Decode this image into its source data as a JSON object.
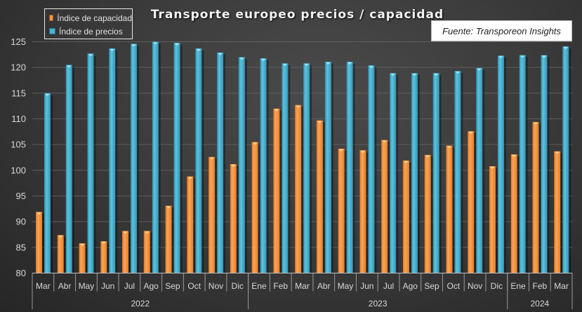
{
  "chart_data": {
    "type": "bar",
    "title": "Transporte europeo precios / capacidad",
    "source": "Fuente: Transporeon Insights",
    "xlabel": "",
    "ylabel": "",
    "ylim": [
      80,
      125
    ],
    "yticks": [
      80,
      85,
      90,
      95,
      100,
      105,
      110,
      115,
      120,
      125
    ],
    "grid": true,
    "legend_position": "top-left",
    "categories": [
      "Mar",
      "Abr",
      "May",
      "Jun",
      "Jul",
      "Ago",
      "Sep",
      "Oct",
      "Nov",
      "Dic",
      "Ene",
      "Feb",
      "Mar",
      "Abr",
      "May",
      "Jun",
      "Jul",
      "Ago",
      "Sep",
      "Oct",
      "Nov",
      "Dic",
      "Ene",
      "Feb",
      "Mar"
    ],
    "year_groups": [
      {
        "label": "2022",
        "count": 10
      },
      {
        "label": "2023",
        "count": 12
      },
      {
        "label": "2024",
        "count": 3
      }
    ],
    "series": [
      {
        "name": "Índice de capacidad",
        "color": "#f7963c",
        "values": [
          91.9,
          87.4,
          85.8,
          86.2,
          88.2,
          88.2,
          93.1,
          98.8,
          102.6,
          101.2,
          105.5,
          112.0,
          112.7,
          109.7,
          104.2,
          103.9,
          105.9,
          101.9,
          103.0,
          104.8,
          107.6,
          100.8,
          103.1,
          109.4,
          103.7
        ]
      },
      {
        "name": "Índice de precios",
        "color": "#4bb3d1",
        "values": [
          115.0,
          120.5,
          122.7,
          123.7,
          124.6,
          125.0,
          124.8,
          123.7,
          122.9,
          122.0,
          121.8,
          120.8,
          120.8,
          121.1,
          121.1,
          120.4,
          118.9,
          118.9,
          118.9,
          119.3,
          119.9,
          122.3,
          122.4,
          122.4,
          124.1
        ]
      }
    ]
  }
}
